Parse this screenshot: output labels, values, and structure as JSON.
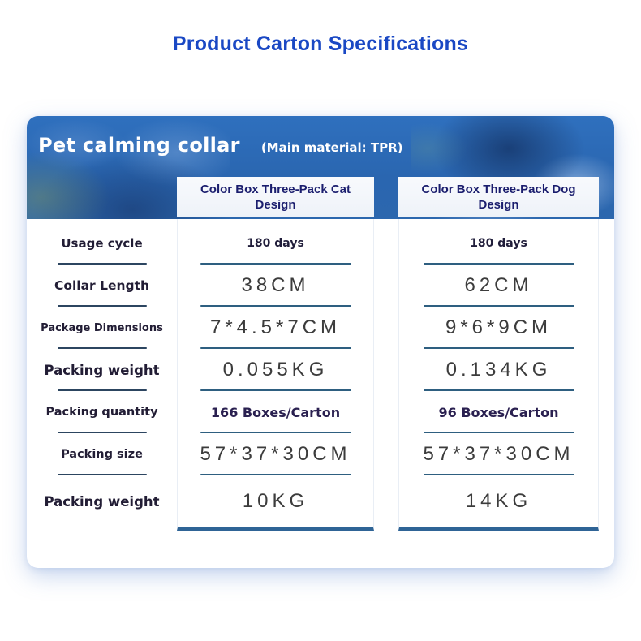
{
  "page": {
    "title": "Product Carton Specifications"
  },
  "product": {
    "name": "Pet calming collar",
    "material_note": "(Main material: TPR)"
  },
  "columns": {
    "cat": {
      "header": "Color Box Three-Pack Cat Design"
    },
    "dog": {
      "header": "Color Box Three-Pack Dog Design"
    }
  },
  "rows": [
    {
      "label": "Usage cycle",
      "cat": "180 days",
      "dog": "180 days"
    },
    {
      "label": "Collar Length",
      "cat": "38CM",
      "dog": "62CM"
    },
    {
      "label": "Package Dimensions",
      "cat": "7*4.5*7CM",
      "dog": "9*6*9CM"
    },
    {
      "label": "Packing weight",
      "cat": "0.055KG",
      "dog": "0.134KG"
    },
    {
      "label": "Packing quantity",
      "cat": "166 Boxes/Carton",
      "dog": "96 Boxes/Carton"
    },
    {
      "label": "Packing size",
      "cat": "57*37*30CM",
      "dog": "57*37*30CM"
    },
    {
      "label": "Packing weight",
      "cat": "10KG",
      "dog": "14KG"
    }
  ],
  "colors": {
    "title_blue": "#1a48c4",
    "header_blue": "#2b6ab8",
    "navy_text": "#1b1e6e",
    "column_bottom_border": "#2f6496",
    "value_underline": "#2e5f80",
    "label_underline": "#2c4560"
  }
}
